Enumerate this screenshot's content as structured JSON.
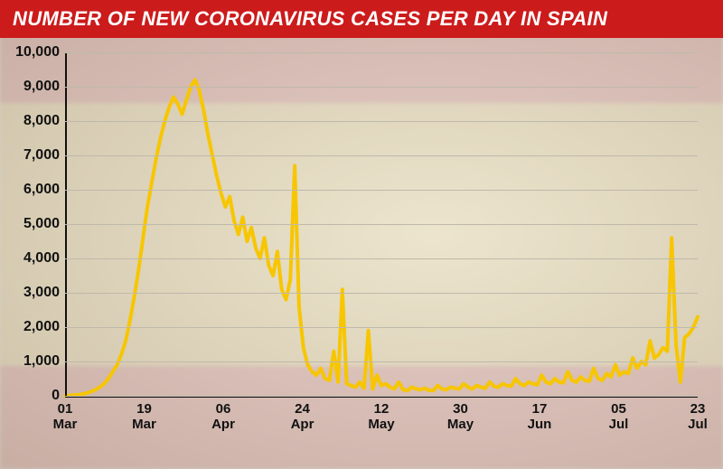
{
  "title": "NUMBER OF NEW CORONAVIRUS CASES PER DAY IN SPAIN",
  "title_bar_color": "#cc1b1b",
  "title_text_color": "#ffffff",
  "title_fontsize": 22,
  "background_tint": "#e8e4dc",
  "chart": {
    "type": "line",
    "line_color": "#f7c600",
    "line_width": 4,
    "grid_color": "#bfb9ac",
    "axis_color": "#111111",
    "label_color": "#111111",
    "label_fontsize": 16,
    "ylim": [
      0,
      10000
    ],
    "ytick_step": 1000,
    "y_ticks": [
      {
        "v": 0,
        "label": "0"
      },
      {
        "v": 1000,
        "label": "1,000"
      },
      {
        "v": 2000,
        "label": "2,000"
      },
      {
        "v": 3000,
        "label": "3,000"
      },
      {
        "v": 4000,
        "label": "4,000"
      },
      {
        "v": 5000,
        "label": "5,000"
      },
      {
        "v": 6000,
        "label": "6,000"
      },
      {
        "v": 7000,
        "label": "7,000"
      },
      {
        "v": 8000,
        "label": "8,000"
      },
      {
        "v": 9000,
        "label": "9,000"
      },
      {
        "v": 10000,
        "label": "10,000"
      }
    ],
    "x_ticks": [
      {
        "day": 1,
        "label_top": "01",
        "label_bot": "Mar"
      },
      {
        "day": 19,
        "label_top": "19",
        "label_bot": "Mar"
      },
      {
        "day": 37,
        "label_top": "06",
        "label_bot": "Apr"
      },
      {
        "day": 55,
        "label_top": "24",
        "label_bot": "Apr"
      },
      {
        "day": 73,
        "label_top": "12",
        "label_bot": "May"
      },
      {
        "day": 91,
        "label_top": "30",
        "label_bot": "May"
      },
      {
        "day": 109,
        "label_top": "17",
        "label_bot": "Jun"
      },
      {
        "day": 127,
        "label_top": "05",
        "label_bot": "Jul"
      },
      {
        "day": 145,
        "label_top": "23",
        "label_bot": "Jul"
      }
    ],
    "x_domain": [
      1,
      145
    ],
    "values": [
      0,
      10,
      20,
      30,
      50,
      80,
      120,
      180,
      250,
      350,
      500,
      700,
      900,
      1200,
      1600,
      2200,
      2900,
      3700,
      4600,
      5500,
      6200,
      6900,
      7500,
      8000,
      8400,
      8700,
      8500,
      8200,
      8600,
      9000,
      9200,
      8900,
      8300,
      7600,
      7000,
      6400,
      5900,
      5500,
      5800,
      5100,
      4700,
      5200,
      4500,
      4900,
      4300,
      4000,
      4600,
      3800,
      3500,
      4200,
      3100,
      2800,
      3400,
      6700,
      2600,
      1400,
      900,
      700,
      600,
      800,
      500,
      450,
      1300,
      400,
      3100,
      350,
      300,
      250,
      400,
      220,
      1900,
      200,
      600,
      300,
      350,
      250,
      200,
      400,
      180,
      150,
      250,
      200,
      180,
      220,
      160,
      150,
      300,
      200,
      180,
      250,
      220,
      200,
      350,
      250,
      200,
      300,
      250,
      220,
      400,
      280,
      250,
      350,
      300,
      280,
      500,
      350,
      300,
      400,
      350,
      320,
      600,
      400,
      350,
      500,
      400,
      380,
      700,
      450,
      400,
      550,
      450,
      420,
      800,
      500,
      450,
      650,
      550,
      900,
      600,
      700,
      650,
      1100,
      800,
      1000,
      900,
      1600,
      1100,
      1200,
      1400,
      1300,
      4600,
      1500,
      400,
      1700,
      1800,
      2000,
      2300
    ]
  }
}
